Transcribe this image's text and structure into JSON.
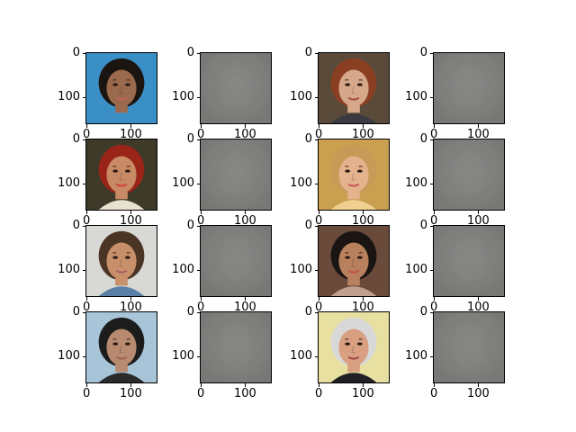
{
  "figure": {
    "rows": 4,
    "cols": 4,
    "panels": [
      {
        "kind": "photo",
        "subject": "woman-curly-hair",
        "row": 0,
        "col": 0
      },
      {
        "kind": "reconstruction",
        "row": 0,
        "col": 1
      },
      {
        "kind": "photo",
        "subject": "woman-auburn-hair",
        "row": 0,
        "col": 2
      },
      {
        "kind": "reconstruction",
        "row": 0,
        "col": 3
      },
      {
        "kind": "photo",
        "subject": "woman-red-hair-smiling",
        "row": 1,
        "col": 0
      },
      {
        "kind": "reconstruction",
        "row": 1,
        "col": 1
      },
      {
        "kind": "photo",
        "subject": "woman-blonde-smiling",
        "row": 1,
        "col": 2
      },
      {
        "kind": "reconstruction",
        "row": 1,
        "col": 3
      },
      {
        "kind": "photo",
        "subject": "man-brown-hair",
        "row": 2,
        "col": 0
      },
      {
        "kind": "reconstruction",
        "row": 2,
        "col": 1
      },
      {
        "kind": "photo",
        "subject": "woman-dark-hair-smiling",
        "row": 2,
        "col": 2
      },
      {
        "kind": "reconstruction",
        "row": 2,
        "col": 3
      },
      {
        "kind": "photo",
        "subject": "man-dark-hair",
        "row": 3,
        "col": 0
      },
      {
        "kind": "reconstruction",
        "row": 3,
        "col": 1
      },
      {
        "kind": "photo",
        "subject": "older-man-grey-hair",
        "row": 3,
        "col": 2
      },
      {
        "kind": "reconstruction",
        "row": 3,
        "col": 3
      }
    ]
  },
  "axes": {
    "y_ticks": [
      "0",
      "100"
    ],
    "x_ticks": [
      "0",
      "100"
    ]
  },
  "colors": {
    "reconstruction_gray": "#7f7f7d",
    "axis": "#000000"
  }
}
